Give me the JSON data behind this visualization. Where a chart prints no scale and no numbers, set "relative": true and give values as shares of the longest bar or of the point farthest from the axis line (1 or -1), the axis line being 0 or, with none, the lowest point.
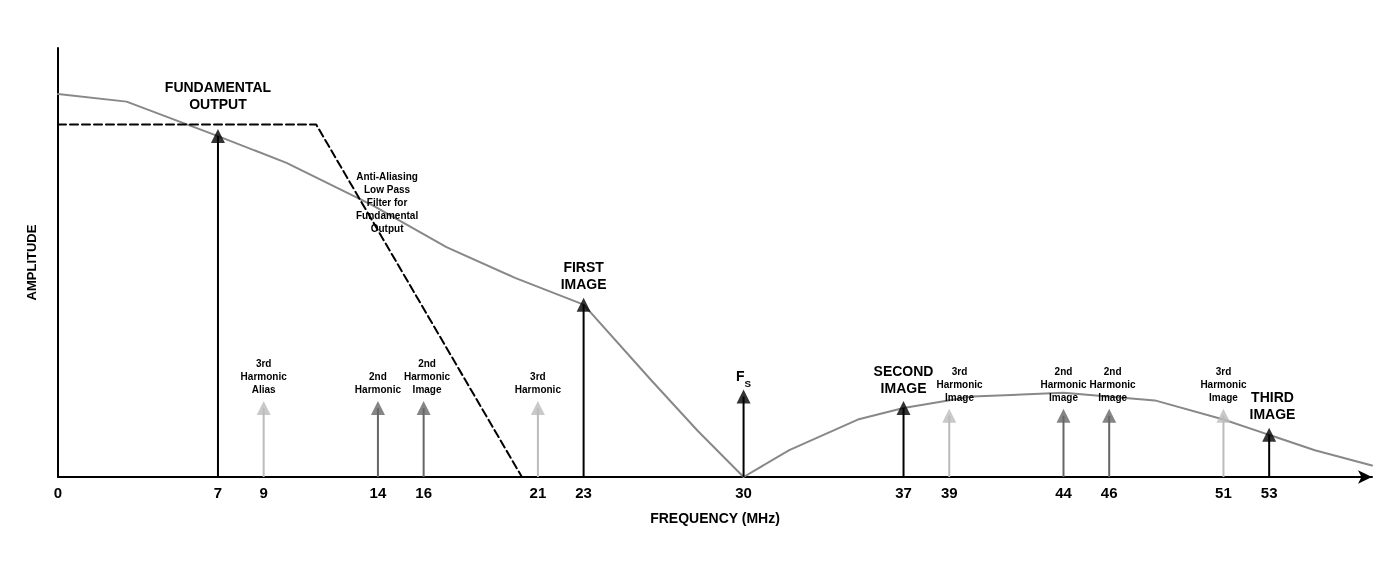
{
  "chart_data": {
    "type": "lollipop",
    "relative": true,
    "xlabel": "FREQUENCY (MHz)",
    "ylabel": "AMPLITUDE",
    "xlim": [
      0,
      57.5
    ],
    "xticks": [
      0,
      7,
      9,
      14,
      16,
      21,
      23,
      30,
      37,
      39,
      44,
      46,
      51,
      53
    ],
    "grid": false,
    "series": [
      {
        "color": "#000000",
        "marker": "triangle",
        "x": [
          7,
          23,
          37,
          53
        ],
        "values": [
          0.89,
          0.45,
          0.18,
          0.11
        ]
      },
      {
        "color": "#666666",
        "marker": "triangle",
        "x": [
          14,
          16,
          44,
          46
        ],
        "values": [
          0.18,
          0.18,
          0.16,
          0.16
        ]
      },
      {
        "color": "#bbbbbb",
        "marker": "triangle",
        "x": [
          9,
          21,
          39,
          51
        ],
        "values": [
          0.18,
          0.18,
          0.16,
          0.16
        ]
      },
      {
        "color": "#000000",
        "marker": "triangle",
        "x": [
          30
        ],
        "values": [
          0.21
        ]
      },
      {
        "type": "line",
        "color": "#888888",
        "line_style": "solid",
        "x": [
          0,
          3,
          7,
          10,
          13.75,
          17,
          20,
          23,
          26,
          28,
          30,
          32,
          35,
          37,
          40,
          44,
          48,
          51,
          53,
          55,
          57.5
        ],
        "values": [
          1.0,
          0.98,
          0.89,
          0.82,
          0.71,
          0.6,
          0.52,
          0.45,
          0.25,
          0.12,
          0,
          0.07,
          0.15,
          0.18,
          0.21,
          0.22,
          0.2,
          0.15,
          0.11,
          0.07,
          0.03
        ]
      },
      {
        "type": "line",
        "color": "#000000",
        "line_style": "dashed",
        "x": [
          0,
          11.3,
          20.3
        ],
        "values": [
          0.92,
          0.92,
          0
        ]
      }
    ],
    "annotations": [
      {
        "text": "FUNDAMENTAL\nOUTPUT",
        "x": 7,
        "y": 0.92
      },
      {
        "text": "Anti-Aliasing\nLow Pass\nFilter for\nFundamental\nOutput",
        "x": 14.4,
        "y": 0.6
      },
      {
        "text": "3rd\nHarmonic\nAlias",
        "x": 9,
        "y": 0.18
      },
      {
        "text": "2nd\nHarmonic",
        "x": 14,
        "y": 0.18
      },
      {
        "text": "2nd\nHarmonic\nImage",
        "x": 16,
        "y": 0.18
      },
      {
        "text": "3rd\nHarmonic",
        "x": 21,
        "y": 0.18
      },
      {
        "text": "FIRST\nIMAGE",
        "x": 23,
        "y": 0.45
      },
      {
        "text": "F$_{S}$",
        "x": 30,
        "y": 0.21
      },
      {
        "text": "SECOND\nIMAGE",
        "x": 37,
        "y": 0.18
      },
      {
        "text": "3rd\nHarmonic\nImage",
        "x": 39,
        "y": 0.16
      },
      {
        "text": "2nd\nHarmonic\nImage",
        "x": 44,
        "y": 0.16
      },
      {
        "text": "2nd\nHarmonic\nImage",
        "x": 46,
        "y": 0.16
      },
      {
        "text": "3rd\nHarmonic\nImage",
        "x": 51,
        "y": 0.16
      },
      {
        "text": "THIRD\nIMAGE",
        "x": 53,
        "y": 0.11
      }
    ]
  }
}
